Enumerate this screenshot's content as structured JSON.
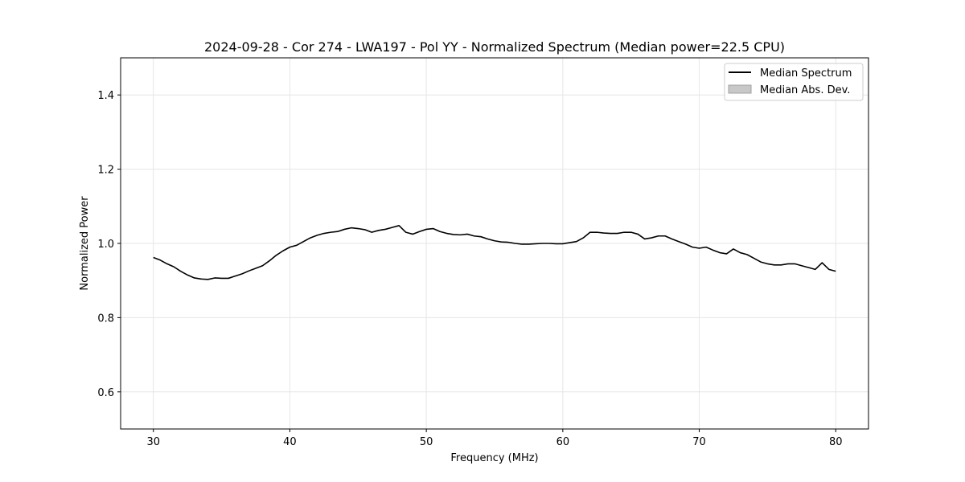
{
  "chart_data": {
    "type": "line",
    "title": "2024-09-28 - Cor 274 - LWA197 - Pol YY - Normalized Spectrum (Median power=22.5 CPU)",
    "xlabel": "Frequency (MHz)",
    "ylabel": "Normalized Power",
    "xlim": [
      27.6,
      82.4
    ],
    "ylim": [
      0.5,
      1.5
    ],
    "xticks": [
      30,
      40,
      50,
      60,
      70,
      80
    ],
    "yticks": [
      0.6,
      0.8,
      1.0,
      1.2,
      1.4
    ],
    "xtick_labels": [
      "30",
      "40",
      "50",
      "60",
      "70",
      "80"
    ],
    "ytick_labels": [
      "0.6",
      "0.8",
      "1.0",
      "1.2",
      "1.4"
    ],
    "grid": true,
    "legend": {
      "position": "top-right",
      "entries": [
        "Median Spectrum",
        "Median Abs. Dev."
      ]
    },
    "colors": {
      "line": "#000000",
      "mad_fill": "#c8c8c8",
      "grid": "#e6e6e6"
    },
    "series": [
      {
        "name": "Median Spectrum",
        "x": [
          30,
          30.5,
          31,
          31.5,
          32,
          32.5,
          33,
          33.5,
          34,
          34.5,
          35,
          35.5,
          36,
          36.5,
          37,
          37.5,
          38,
          38.5,
          39,
          39.5,
          40,
          40.5,
          41,
          41.5,
          42,
          42.5,
          43,
          43.5,
          44,
          44.5,
          45,
          45.5,
          46,
          46.5,
          47,
          47.5,
          48,
          48.5,
          49,
          49.5,
          50,
          50.5,
          51,
          51.5,
          52,
          52.5,
          53,
          53.5,
          54,
          54.5,
          55,
          55.5,
          56,
          56.5,
          57,
          57.5,
          58,
          58.5,
          59,
          59.5,
          60,
          60.5,
          61,
          61.5,
          62,
          62.5,
          63,
          63.5,
          64,
          64.5,
          65,
          65.5,
          66,
          66.5,
          67,
          67.5,
          68,
          68.5,
          69,
          69.5,
          70,
          70.5,
          71,
          71.5,
          72,
          72.5,
          73,
          73.5,
          74,
          74.5,
          75,
          75.5,
          76,
          76.5,
          77,
          77.5,
          78,
          78.5,
          79,
          79.5,
          80
        ],
        "values": [
          0.962,
          0.955,
          0.945,
          0.937,
          0.925,
          0.915,
          0.907,
          0.904,
          0.903,
          0.907,
          0.906,
          0.906,
          0.912,
          0.918,
          0.926,
          0.933,
          0.94,
          0.953,
          0.968,
          0.98,
          0.99,
          0.995,
          1.005,
          1.015,
          1.022,
          1.027,
          1.03,
          1.032,
          1.038,
          1.042,
          1.04,
          1.037,
          1.03,
          1.035,
          1.038,
          1.043,
          1.048,
          1.03,
          1.025,
          1.032,
          1.038,
          1.04,
          1.032,
          1.027,
          1.024,
          1.023,
          1.025,
          1.02,
          1.018,
          1.012,
          1.007,
          1.004,
          1.003,
          1.0,
          0.998,
          0.998,
          0.999,
          1.0,
          1.0,
          0.999,
          0.999,
          1.002,
          1.005,
          1.015,
          1.03,
          1.03,
          1.028,
          1.027,
          1.027,
          1.03,
          1.03,
          1.025,
          1.012,
          1.015,
          1.02,
          1.02,
          1.012,
          1.005,
          0.998,
          0.99,
          0.987,
          0.99,
          0.982,
          0.975,
          0.972,
          0.985,
          0.975,
          0.97,
          0.96,
          0.95,
          0.945,
          0.942,
          0.942,
          0.945,
          0.945,
          0.94,
          0.935,
          0.93,
          0.948,
          0.93,
          0.925
        ]
      }
    ]
  }
}
